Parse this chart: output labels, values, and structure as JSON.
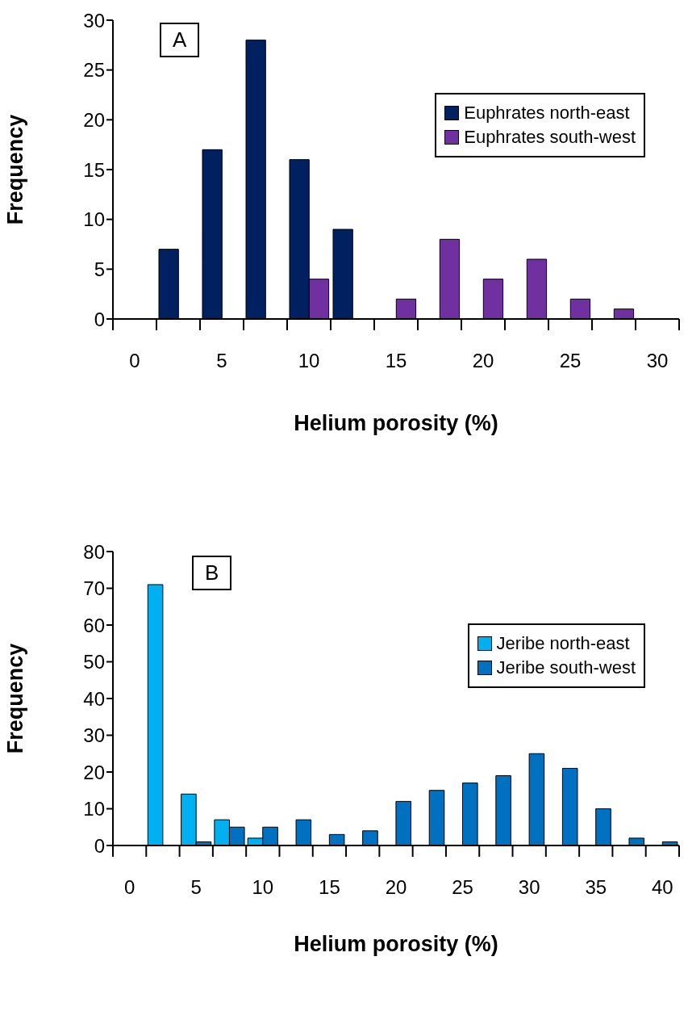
{
  "chart_data": [
    {
      "type": "bar",
      "xlabel": "Helium porosity (%)",
      "ylabel": "Frequency",
      "annotations": [
        "A"
      ],
      "categories": [
        "0",
        null,
        "5",
        null,
        "10",
        null,
        "15",
        null,
        "20",
        null,
        "25",
        null,
        "30"
      ],
      "series": [
        {
          "name": "Euphrates north-east",
          "color": "#002060",
          "values": [
            0,
            7,
            17,
            28,
            16,
            9,
            0,
            0,
            0,
            0,
            0,
            0,
            0
          ]
        },
        {
          "name": "Euphrates south-west",
          "color": "#7030a0",
          "values": [
            0,
            0,
            0,
            0,
            4,
            0,
            2,
            8,
            4,
            6,
            2,
            1,
            0
          ]
        }
      ],
      "ylim": [
        0,
        30
      ],
      "yticks": [
        0,
        5,
        10,
        15,
        20,
        25,
        30
      ],
      "legend": "top right",
      "grid": false
    },
    {
      "type": "bar",
      "xlabel": "Helium porosity (%)",
      "ylabel": "Frequency",
      "annotations": [
        "B"
      ],
      "categories": [
        "0",
        null,
        "5",
        null,
        "10",
        null,
        "15",
        null,
        "20",
        null,
        "25",
        null,
        "30",
        null,
        "35",
        null,
        "40"
      ],
      "series": [
        {
          "name": "Jeribe north-east",
          "color": "#00b0f0",
          "values": [
            0,
            71,
            14,
            7,
            2,
            0,
            0,
            0,
            0,
            0,
            0,
            0,
            0,
            0,
            0,
            0,
            0
          ]
        },
        {
          "name": "Jeribe south-west",
          "color": "#0070c0",
          "values": [
            0,
            0,
            1,
            5,
            5,
            7,
            3,
            4,
            12,
            15,
            17,
            19,
            25,
            21,
            10,
            2,
            1
          ]
        }
      ],
      "ylim": [
        0,
        80
      ],
      "yticks": [
        0,
        10,
        20,
        30,
        40,
        50,
        60,
        70,
        80
      ],
      "legend": "top right",
      "grid": false
    }
  ]
}
